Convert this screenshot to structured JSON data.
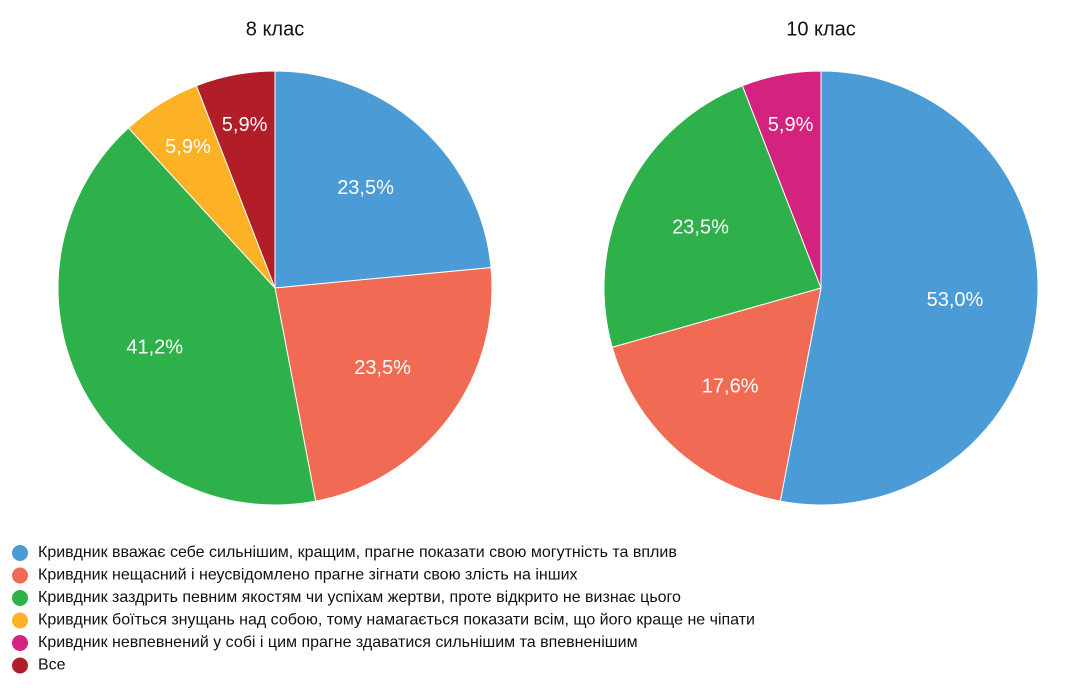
{
  "legend": {
    "categories": [
      "Кривдник вважає себе сильнішим, кращим, прагне показати свою могутність та вплив",
      "Кривдник нещасний і неусвідомлено прагне зігнати свою злість на  інших",
      "Кривдник заздрить певним якостям чи успіхам жертви, проте відкрито не визнає цього",
      "Кривдник боїться знущань над собою, тому намагається показати всім, що його краще не чіпати",
      "Кривдник невпевнений у собі і цим прагне здаватися сильнішим та впевненішим",
      "Все"
    ],
    "colors": [
      "#4a9bd6",
      "#f06a54",
      "#2eb04b",
      "#fdb124",
      "#d4237f",
      "#b21e28"
    ]
  },
  "chart_data": [
    {
      "type": "pie",
      "title": "8 клас",
      "values": [
        23.5,
        23.5,
        41.2,
        5.9,
        null,
        5.9
      ],
      "value_labels": [
        "23,5%",
        "23,5%",
        "41,2%",
        "5,9%",
        null,
        "5,9%"
      ]
    },
    {
      "type": "pie",
      "title": "10 клас",
      "values": [
        53.0,
        17.6,
        23.5,
        null,
        5.9,
        null
      ],
      "value_labels": [
        "53,0%",
        "17,6%",
        "23,5%",
        null,
        "5,9%",
        null
      ]
    }
  ]
}
